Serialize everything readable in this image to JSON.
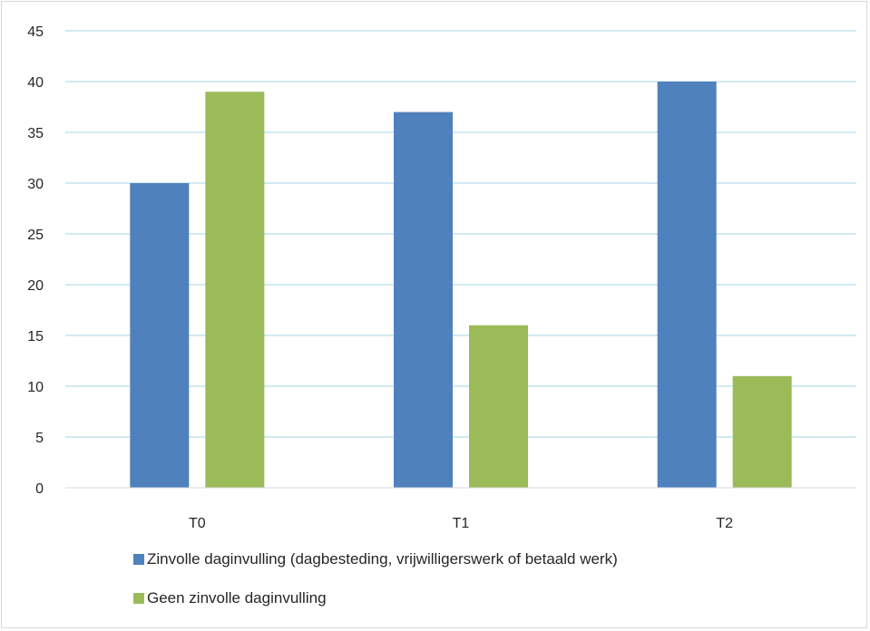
{
  "chart_data": {
    "type": "bar",
    "categories": [
      "T0",
      "T1",
      "T2"
    ],
    "series": [
      {
        "name": "Zinvolle daginvulling (dagbesteding, vrijwilligerswerk of betaald werk)",
        "values": [
          30,
          37,
          40
        ],
        "color": "#4f81bd"
      },
      {
        "name": "Geen zinvolle daginvulling",
        "values": [
          39,
          16,
          11
        ],
        "color": "#9bbb59"
      }
    ],
    "ylim": [
      0,
      45
    ],
    "yticks": [
      0,
      5,
      10,
      15,
      20,
      25,
      30,
      35,
      40,
      45
    ],
    "title": "",
    "xlabel": "",
    "ylabel": "",
    "grid": true,
    "gridline_color": "#a6d4e6",
    "legend_position": "bottom"
  }
}
